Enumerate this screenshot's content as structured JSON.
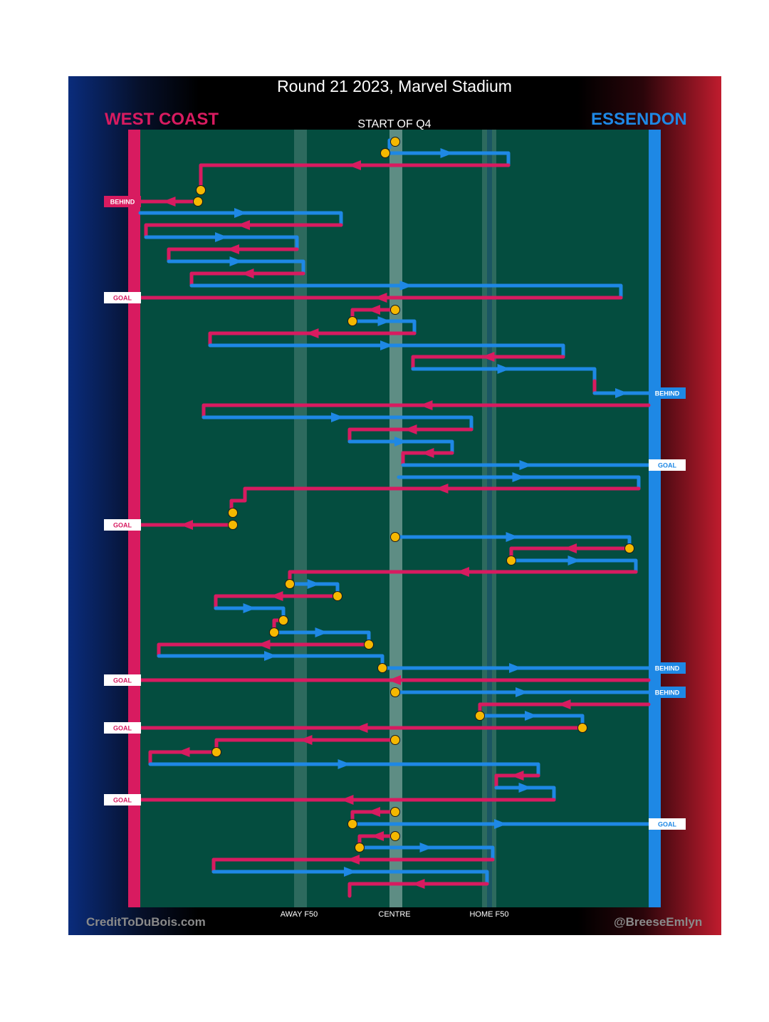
{
  "title": "Round 21 2023, Marvel Stadium",
  "teams": {
    "away": {
      "name": "WEST COAST",
      "color": "#d81b60"
    },
    "home": {
      "name": "ESSENDON",
      "color": "#1e88e5"
    }
  },
  "period_label": "START OF Q4",
  "field_markers": [
    "AWAY F50",
    "CENTRE",
    "HOME F50"
  ],
  "credits": {
    "left": "CreditToDuBois.com",
    "right": "@BreeseEmlyn"
  },
  "result_labels": {
    "goal": "GOAL",
    "behind": "BEHIND"
  },
  "colors": {
    "field": "#044d3f",
    "centre_band": "#5e8d84",
    "f50_band": "#2d6a5e",
    "ball_up_marker": "#f5b800"
  }
}
